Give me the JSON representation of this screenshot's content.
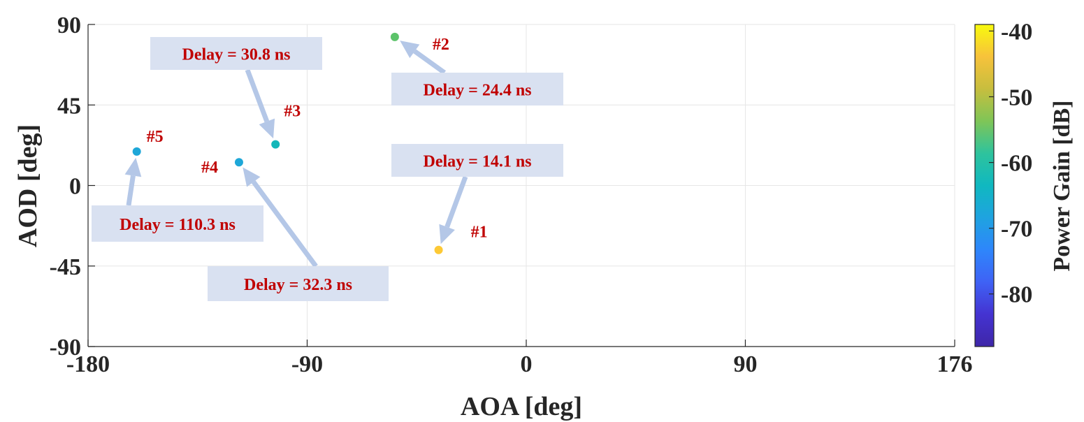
{
  "chart_data": {
    "type": "scatter",
    "title": "",
    "xlabel": "AOA [deg]",
    "ylabel": "AOD [deg]",
    "xlim": [
      -180,
      176
    ],
    "ylim": [
      -90,
      90
    ],
    "x_ticks": [
      -180,
      -90,
      0,
      90,
      176
    ],
    "y_ticks": [
      -90,
      -45,
      0,
      45,
      90
    ],
    "grid": true,
    "points": [
      {
        "label": "#1",
        "aoa": -36,
        "aod": -36,
        "power_db": -47,
        "color": "#fdc935"
      },
      {
        "label": "#2",
        "aoa": -54,
        "aod": 83,
        "power_db": -58,
        "color": "#5cc36a"
      },
      {
        "label": "#3",
        "aoa": -103,
        "aod": 23,
        "power_db": -65,
        "color": "#13b7b9"
      },
      {
        "label": "#4",
        "aoa": -118,
        "aod": 13,
        "power_db": -69,
        "color": "#1ea7d8"
      },
      {
        "label": "#5",
        "aoa": -160,
        "aod": 19,
        "power_db": -70,
        "color": "#1ea7d8"
      }
    ],
    "annotations": [
      {
        "text": "Delay = 14.1 ns",
        "target": "#1"
      },
      {
        "text": "Delay = 24.4 ns",
        "target": "#2"
      },
      {
        "text": "Delay = 30.8 ns",
        "target": "#3"
      },
      {
        "text": "Delay = 32.3 ns",
        "target": "#4"
      },
      {
        "text": "Delay = 110.3 ns",
        "target": "#5"
      }
    ],
    "colorbar": {
      "label": "Power Gain [dB]",
      "range": [
        -88,
        -39
      ],
      "ticks": [
        -40,
        -50,
        -60,
        -70,
        -80
      ],
      "colormap": [
        "#3e26a8",
        "#4433d1",
        "#3f62f5",
        "#2e86fb",
        "#1fa3e0",
        "#10b8c0",
        "#2ec39d",
        "#7fc557",
        "#c7be3e",
        "#f7c23b",
        "#f8fa0d"
      ]
    },
    "annotation_box_color": "#d9e1f1",
    "annotation_text_color": "#c00000",
    "arrow_color": "#b4c7e7"
  }
}
